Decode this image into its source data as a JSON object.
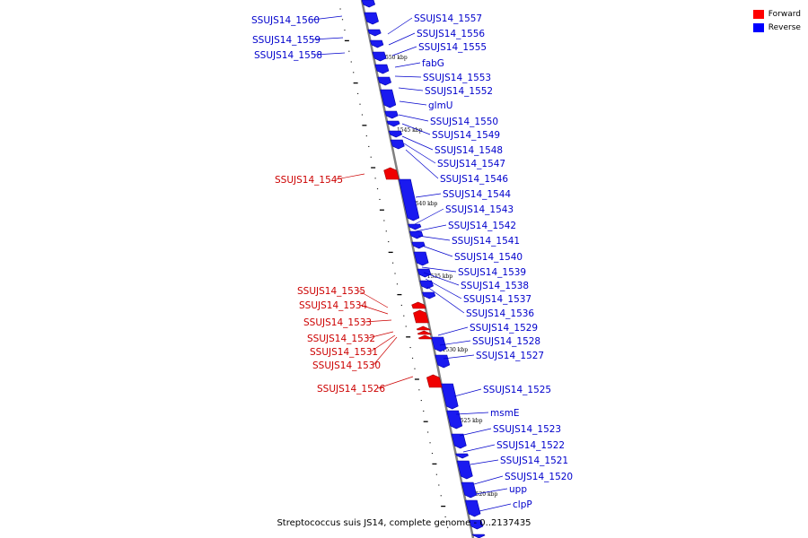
{
  "caption": "Streptococcus suis JS14, complete genome - 0..2137435",
  "legend": [
    {
      "label": "Forward",
      "color": "#ff0000"
    },
    {
      "label": "Reverse",
      "color": "#0000ff"
    }
  ],
  "colors": {
    "forward_label": "#cc0000",
    "reverse_label": "#0000cc",
    "backbone": "#808080"
  },
  "ticks": [
    {
      "label": "1550 kbp"
    },
    {
      "label": "1545 kbp"
    },
    {
      "label": "1540 kbp"
    },
    {
      "label": "1535 kbp"
    },
    {
      "label": "1530 kbp"
    },
    {
      "label": "1525 kbp"
    },
    {
      "label": "1520 kbp"
    }
  ],
  "reverse_genes": [
    "SSUJS14_1560",
    "SSUJS14_1559",
    "SSUJS14_1558",
    "SSUJS14_1557",
    "SSUJS14_1556",
    "SSUJS14_1555",
    "fabG",
    "SSUJS14_1553",
    "SSUJS14_1552",
    "glmU",
    "SSUJS14_1550",
    "SSUJS14_1549",
    "SSUJS14_1548",
    "SSUJS14_1547",
    "SSUJS14_1546",
    "SSUJS14_1544",
    "SSUJS14_1543",
    "SSUJS14_1542",
    "SSUJS14_1541",
    "SSUJS14_1540",
    "SSUJS14_1539",
    "SSUJS14_1538",
    "SSUJS14_1537",
    "SSUJS14_1536",
    "SSUJS14_1529",
    "SSUJS14_1528",
    "SSUJS14_1527",
    "SSUJS14_1525",
    "msmE",
    "SSUJS14_1523",
    "SSUJS14_1522",
    "SSUJS14_1521",
    "SSUJS14_1520",
    "upp",
    "clpP"
  ],
  "forward_genes": [
    "SSUJS14_1545",
    "SSUJS14_1535",
    "SSUJS14_1534",
    "SSUJS14_1533",
    "SSUJS14_1532",
    "SSUJS14_1531",
    "SSUJS14_1530",
    "SSUJS14_1526"
  ]
}
